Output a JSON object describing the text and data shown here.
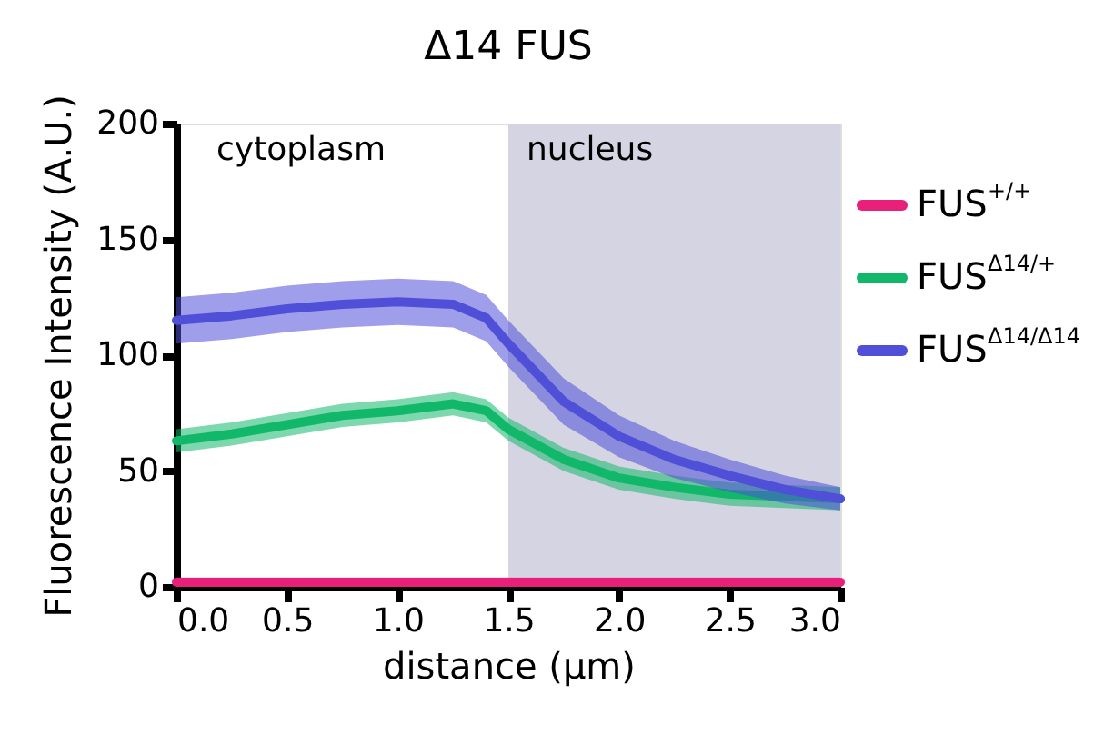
{
  "chart_data": {
    "type": "line",
    "title": "Δ14 FUS",
    "xlabel": "distance (μm)",
    "ylabel": "Fluorescence Intensity (A.U.)",
    "x": [
      0,
      0.25,
      0.5,
      0.75,
      1.0,
      1.25,
      1.4,
      1.5,
      1.75,
      2.0,
      2.25,
      2.5,
      2.75,
      3.0
    ],
    "series": [
      {
        "name": "FUS$^{+/+}$",
        "color": "#e8207a",
        "values": [
          2,
          2,
          2,
          2,
          2,
          2,
          2,
          2,
          2,
          2,
          2,
          2,
          2,
          2
        ],
        "lower": [
          0,
          0,
          0,
          0,
          0,
          0,
          0,
          0,
          0,
          0,
          0,
          0,
          0,
          0
        ],
        "upper": [
          4,
          4,
          4,
          4,
          4,
          4,
          4,
          4,
          4,
          4,
          4,
          4,
          4,
          4
        ]
      },
      {
        "name": "FUS$^{Δ14/+}$",
        "color": "#12b86a",
        "values": [
          63,
          66,
          70,
          74,
          76,
          79,
          76,
          68,
          55,
          47,
          43,
          40,
          39,
          38
        ],
        "lower": [
          58,
          61,
          65,
          69,
          71,
          74,
          71,
          63,
          50,
          42,
          38,
          35,
          34,
          33
        ],
        "upper": [
          68,
          71,
          75,
          79,
          81,
          84,
          81,
          73,
          60,
          52,
          48,
          45,
          44,
          43
        ]
      },
      {
        "name": "FUS$^{Δ14/Δ14}$",
        "color": "#4f4fd8",
        "values": [
          115,
          117,
          120,
          122,
          123,
          122,
          116,
          105,
          80,
          65,
          55,
          48,
          42,
          38
        ],
        "lower": [
          105,
          107,
          110,
          112,
          113,
          112,
          106,
          95,
          70,
          56,
          47,
          41,
          36,
          33
        ],
        "upper": [
          125,
          127,
          130,
          132,
          133,
          132,
          126,
          115,
          90,
          74,
          63,
          55,
          48,
          43
        ]
      }
    ],
    "xlim": [
      0,
      3.0
    ],
    "xticks": [
      {
        "value": 0,
        "label": "0.0"
      },
      0.5,
      {
        "value": 1,
        "label": "1.0"
      },
      1.5,
      {
        "value": 2,
        "label": "2.0"
      },
      2.5,
      {
        "value": 3,
        "label": "3.0"
      }
    ],
    "ylim": [
      0,
      200
    ],
    "yticks": [
      0,
      50,
      100,
      150,
      200
    ],
    "bands": [
      {
        "axis": "x",
        "from": 1.5,
        "to": 3.0,
        "label": "nucleus",
        "color": "#d4d4e3"
      }
    ],
    "annotations": [
      "cytoplasm"
    ],
    "legend": "right",
    "grid": false,
    "marker": "none",
    "line_style": "solid"
  }
}
